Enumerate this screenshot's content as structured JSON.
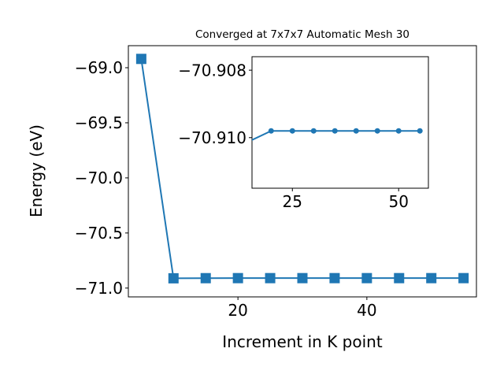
{
  "chart_data": [
    {
      "type": "line",
      "title": "Converged at 7x7x7 Automatic Mesh 30",
      "xlabel": "Increment in K point",
      "ylabel": "Energy (eV)",
      "xlim": [
        3,
        57
      ],
      "ylim": [
        -71.08,
        -68.8
      ],
      "xticks": [
        20,
        40
      ],
      "yticks": [
        -71.0,
        -70.5,
        -70.0,
        -69.5,
        -69.0
      ],
      "ytick_labels": [
        "−71.0",
        "−70.5",
        "−70.0",
        "−69.5",
        "−69.0"
      ],
      "marker": "square",
      "color": "#1f77b4",
      "x": [
        5,
        10,
        15,
        20,
        25,
        30,
        35,
        40,
        45,
        50,
        55
      ],
      "y": [
        -68.92,
        -70.9113,
        -70.9101,
        -70.9098,
        -70.9098,
        -70.9098,
        -70.9098,
        -70.9098,
        -70.9098,
        -70.9098,
        -70.9098
      ]
    },
    {
      "type": "line",
      "title": "",
      "xlabel": "",
      "ylabel": "",
      "inset": true,
      "xlim": [
        15.5,
        57
      ],
      "ylim": [
        -70.9115,
        -70.9076
      ],
      "xticks": [
        25,
        50
      ],
      "yticks": [
        -70.91,
        -70.908
      ],
      "ytick_labels": [
        "−70.910",
        "−70.908"
      ],
      "marker": "circle",
      "color": "#1f77b4",
      "x": [
        10,
        15,
        20,
        25,
        30,
        35,
        40,
        45,
        50,
        55
      ],
      "y": [
        -70.9113,
        -70.9101,
        -70.9098,
        -70.9098,
        -70.9098,
        -70.9098,
        -70.9098,
        -70.9098,
        -70.9098,
        -70.9098
      ]
    }
  ]
}
